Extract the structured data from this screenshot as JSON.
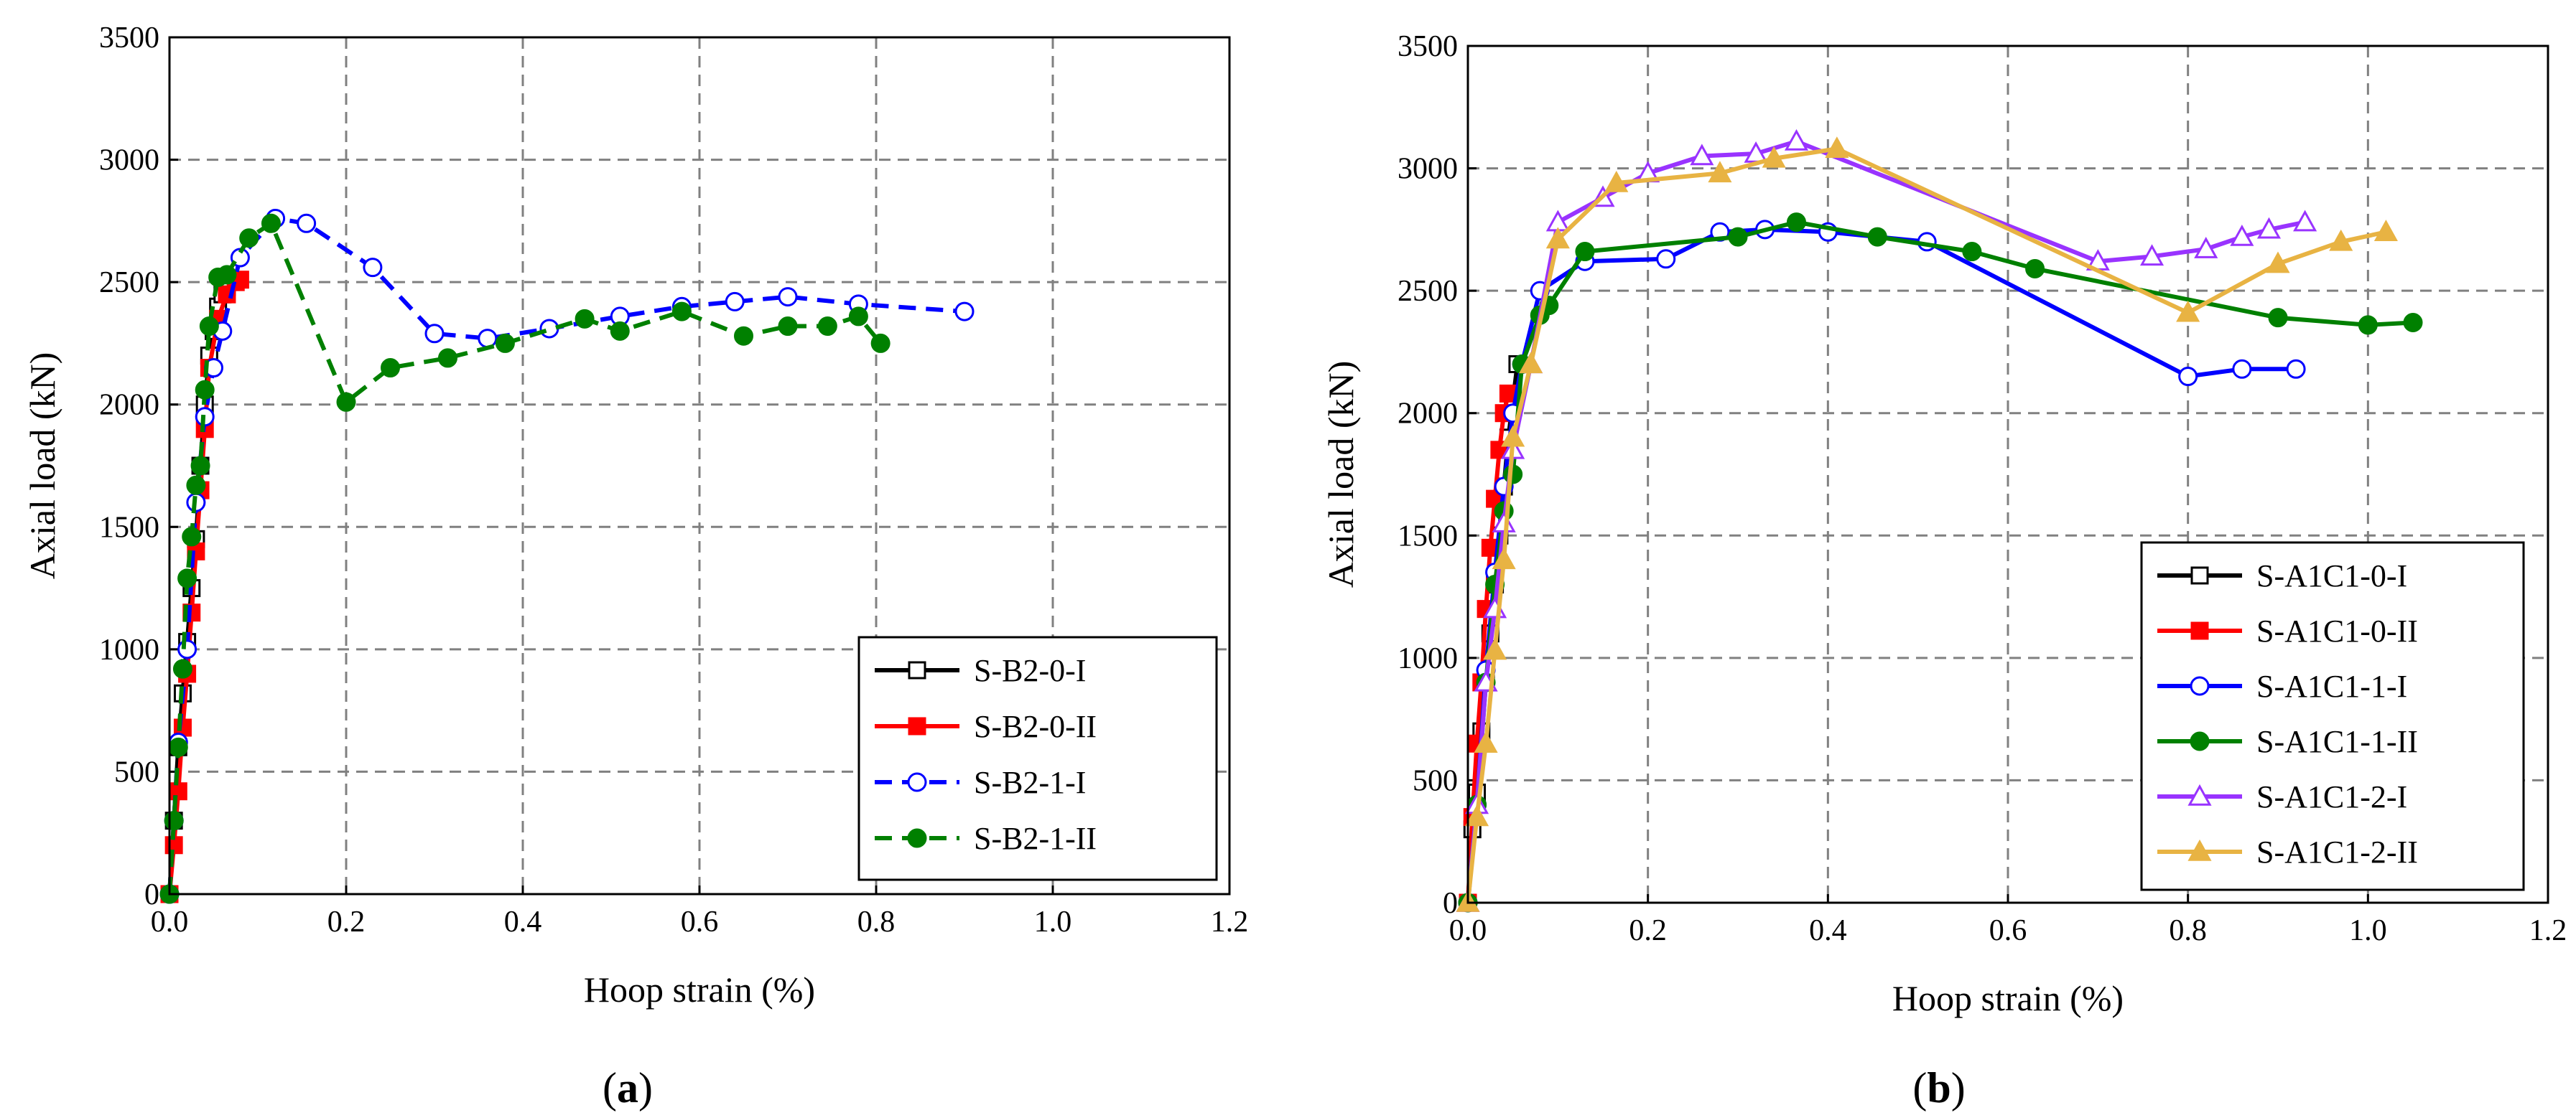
{
  "chart_data": [
    {
      "type": "line",
      "panel_label": "a",
      "xlabel": "Hoop strain (%)",
      "ylabel": "Axial load (kN)",
      "xlim": [
        0,
        1.2
      ],
      "ylim": [
        0,
        3500
      ],
      "xticks": [
        0,
        0.2,
        0.4,
        0.6,
        0.8,
        1.0,
        1.2
      ],
      "xtick_labels": [
        "0.0",
        "0.2",
        "0.4",
        "0.6",
        "0.8",
        "1.0",
        "1.2"
      ],
      "yticks": [
        0,
        500,
        1000,
        1500,
        2000,
        2500,
        3000,
        3500
      ],
      "ytick_labels": [
        "0",
        "500",
        "1000",
        "1500",
        "2000",
        "2500",
        "3000",
        "3500"
      ],
      "grid": true,
      "legend_position": "bottom-right",
      "series": [
        {
          "name": "S-B2-0-I",
          "color": "#000000",
          "dash": "solid",
          "marker": "square-open",
          "x": [
            0,
            0.005,
            0.01,
            0.015,
            0.02,
            0.025,
            0.03,
            0.035,
            0.04,
            0.045,
            0.05,
            0.055,
            0.06,
            0.065
          ],
          "y": [
            0,
            300,
            600,
            820,
            1030,
            1250,
            1450,
            1750,
            2000,
            2200,
            2300,
            2400,
            2450,
            2480
          ]
        },
        {
          "name": "S-B2-0-II",
          "color": "#ff0000",
          "dash": "solid",
          "marker": "square-filled",
          "x": [
            0,
            0.005,
            0.01,
            0.015,
            0.02,
            0.025,
            0.03,
            0.035,
            0.04,
            0.045,
            0.055,
            0.065,
            0.075,
            0.08
          ],
          "y": [
            0,
            200,
            420,
            680,
            900,
            1150,
            1400,
            1650,
            1900,
            2150,
            2350,
            2450,
            2500,
            2510
          ]
        },
        {
          "name": "S-B2-1-I",
          "color": "#0000ff",
          "dash": "dashed",
          "marker": "circle-open",
          "x": [
            0,
            0.005,
            0.01,
            0.02,
            0.03,
            0.04,
            0.05,
            0.06,
            0.08,
            0.12,
            0.155,
            0.23,
            0.3,
            0.36,
            0.43,
            0.51,
            0.58,
            0.64,
            0.7,
            0.78,
            0.9
          ],
          "y": [
            0,
            300,
            620,
            1000,
            1600,
            1950,
            2150,
            2300,
            2600,
            2760,
            2740,
            2560,
            2290,
            2270,
            2310,
            2360,
            2400,
            2420,
            2440,
            2410,
            2380
          ]
        },
        {
          "name": "S-B2-1-II",
          "color": "#008000",
          "dash": "dashed",
          "marker": "circle-filled",
          "x": [
            0,
            0.005,
            0.01,
            0.015,
            0.02,
            0.025,
            0.03,
            0.035,
            0.04,
            0.045,
            0.055,
            0.065,
            0.09,
            0.115,
            0.2,
            0.25,
            0.315,
            0.38,
            0.47,
            0.51,
            0.58,
            0.65,
            0.7,
            0.745,
            0.78,
            0.805
          ],
          "y": [
            0,
            300,
            600,
            920,
            1290,
            1460,
            1670,
            1750,
            2060,
            2320,
            2520,
            2530,
            2680,
            2740,
            2010,
            2150,
            2190,
            2250,
            2350,
            2300,
            2380,
            2280,
            2320,
            2320,
            2360,
            2250
          ]
        }
      ]
    },
    {
      "type": "line",
      "panel_label": "b",
      "xlabel": "Hoop strain (%)",
      "ylabel": "Axial load (kN)",
      "xlim": [
        0,
        1.2
      ],
      "ylim": [
        0,
        3500
      ],
      "xticks": [
        0,
        0.2,
        0.4,
        0.6,
        0.8,
        1.0,
        1.2
      ],
      "xtick_labels": [
        "0.0",
        "0.2",
        "0.4",
        "0.6",
        "0.8",
        "1.0",
        "1.2"
      ],
      "yticks": [
        0,
        500,
        1000,
        1500,
        2000,
        2500,
        3000,
        3500
      ],
      "ytick_labels": [
        "0",
        "500",
        "1000",
        "1500",
        "2000",
        "2500",
        "3000",
        "3500"
      ],
      "grid": true,
      "legend_position": "bottom-right",
      "series": [
        {
          "name": "S-A1C1-0-I",
          "color": "#000000",
          "dash": "solid",
          "marker": "square-open",
          "x": [
            0,
            0.005,
            0.01,
            0.015,
            0.02,
            0.025,
            0.03,
            0.035,
            0.04,
            0.045,
            0.05,
            0.055
          ],
          "y": [
            0,
            300,
            450,
            700,
            900,
            1100,
            1300,
            1500,
            1700,
            1900,
            2050,
            2200
          ]
        },
        {
          "name": "S-A1C1-0-II",
          "color": "#ff0000",
          "dash": "solid",
          "marker": "square-filled",
          "x": [
            0,
            0.005,
            0.01,
            0.015,
            0.02,
            0.025,
            0.03,
            0.035,
            0.04,
            0.045
          ],
          "y": [
            0,
            350,
            650,
            900,
            1200,
            1450,
            1650,
            1850,
            2000,
            2080
          ]
        },
        {
          "name": "S-A1C1-1-I",
          "color": "#0000ff",
          "dash": "solid",
          "marker": "circle-open",
          "x": [
            0,
            0.01,
            0.02,
            0.03,
            0.04,
            0.05,
            0.06,
            0.08,
            0.13,
            0.22,
            0.28,
            0.33,
            0.4,
            0.51,
            0.8,
            0.86,
            0.92
          ],
          "y": [
            0,
            400,
            950,
            1350,
            1700,
            2000,
            2200,
            2500,
            2620,
            2630,
            2740,
            2750,
            2740,
            2700,
            2150,
            2180,
            2180
          ]
        },
        {
          "name": "S-A1C1-1-II",
          "color": "#008000",
          "dash": "solid",
          "marker": "circle-filled",
          "x": [
            0,
            0.01,
            0.02,
            0.03,
            0.04,
            0.05,
            0.06,
            0.08,
            0.09,
            0.13,
            0.3,
            0.365,
            0.455,
            0.56,
            0.63,
            0.9,
            1.0,
            1.05
          ],
          "y": [
            0,
            400,
            900,
            1300,
            1600,
            1750,
            2200,
            2400,
            2440,
            2660,
            2720,
            2780,
            2720,
            2660,
            2590,
            2390,
            2360,
            2370
          ]
        },
        {
          "name": "S-A1C1-2-I",
          "color": "#9933ff",
          "dash": "solid",
          "marker": "triangle-open",
          "x": [
            0,
            0.01,
            0.02,
            0.03,
            0.04,
            0.05,
            0.07,
            0.1,
            0.15,
            0.2,
            0.26,
            0.32,
            0.365,
            0.7,
            0.76,
            0.82,
            0.86,
            0.89,
            0.93
          ],
          "y": [
            0,
            400,
            900,
            1200,
            1550,
            1850,
            2200,
            2780,
            2880,
            2980,
            3050,
            3060,
            3110,
            2620,
            2640,
            2670,
            2720,
            2750,
            2780
          ]
        },
        {
          "name": "S-A1C1-2-II",
          "color": "#e8b343",
          "dash": "solid",
          "marker": "triangle-filled",
          "x": [
            0,
            0.01,
            0.02,
            0.03,
            0.04,
            0.05,
            0.07,
            0.1,
            0.165,
            0.28,
            0.34,
            0.41,
            0.8,
            0.9,
            0.97,
            1.02
          ],
          "y": [
            0,
            350,
            650,
            1030,
            1400,
            1900,
            2200,
            2710,
            2940,
            2980,
            3040,
            3080,
            2410,
            2610,
            2700,
            2740
          ]
        }
      ]
    }
  ]
}
